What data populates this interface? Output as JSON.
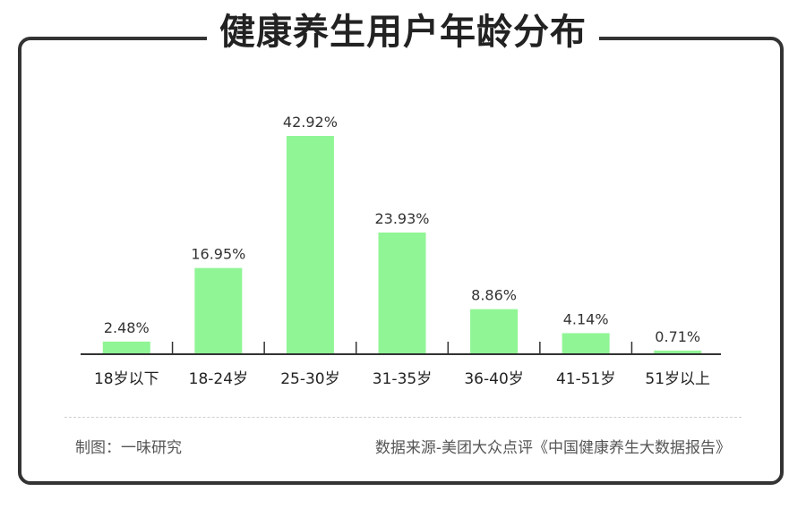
{
  "title": "健康养生用户年龄分布",
  "footer": {
    "credit": "制图：一味研究",
    "source": "数据来源-美团大众点评《中国健康养生大数据报告》"
  },
  "colors": {
    "bar": "#90F595",
    "axis": "#333333",
    "frame": "#333333"
  },
  "chart_data": {
    "type": "bar",
    "title": "健康养生用户年龄分布",
    "categories": [
      "18岁以下",
      "18-24岁",
      "25-30岁",
      "31-35岁",
      "36-40岁",
      "41-51岁",
      "51岁以上"
    ],
    "values": [
      2.48,
      16.95,
      42.92,
      23.93,
      8.86,
      4.14,
      0.71
    ],
    "data_labels": [
      "2.48%",
      "16.95%",
      "42.92%",
      "23.93%",
      "8.86%",
      "4.14%",
      "0.71%"
    ],
    "ylim": [
      0,
      42.92
    ],
    "grid": false,
    "legend": "none"
  }
}
